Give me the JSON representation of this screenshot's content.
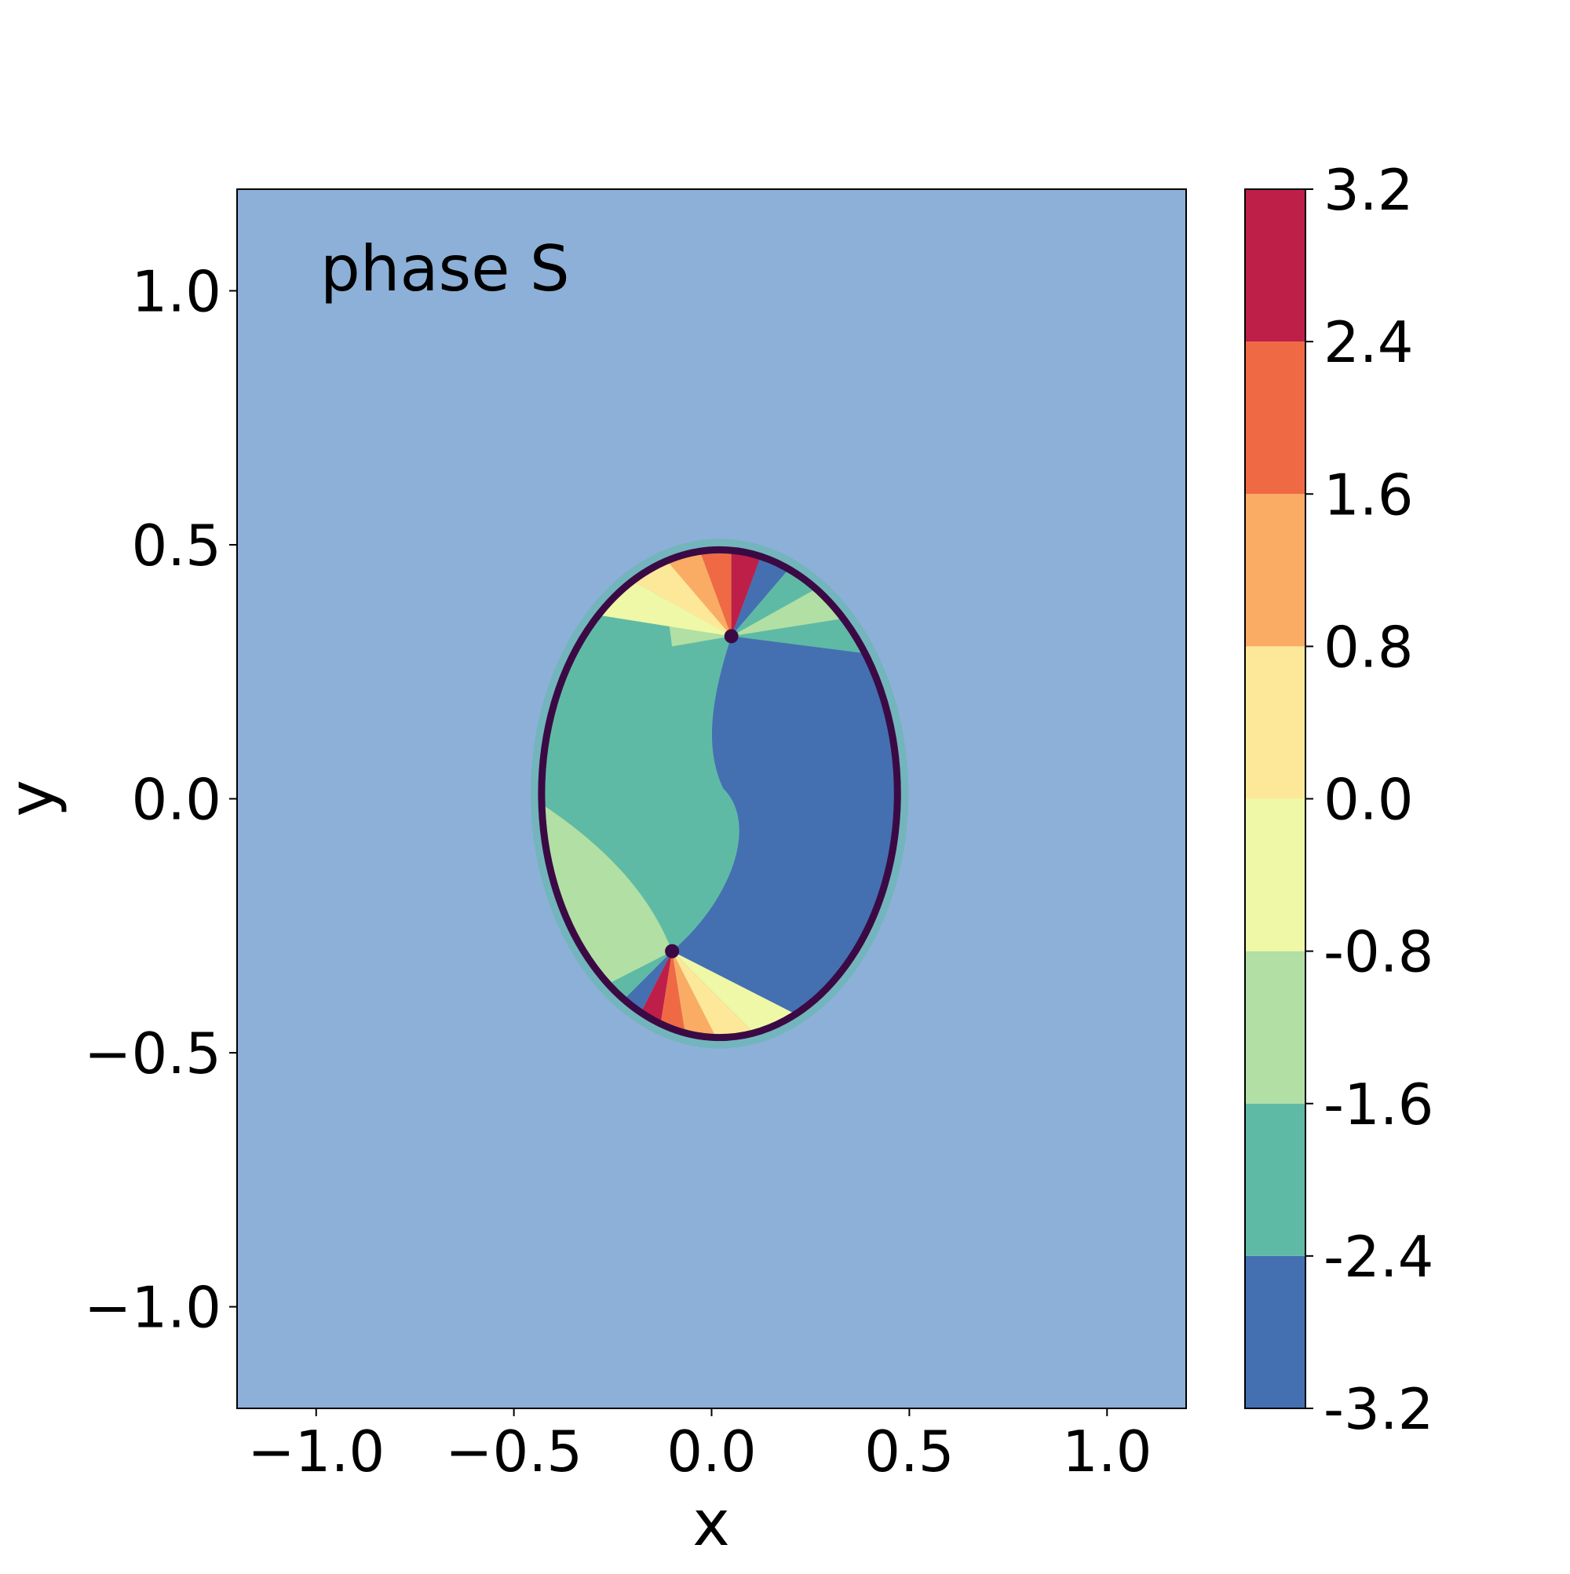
{
  "chart_data": {
    "type": "heatmap",
    "title": "",
    "annotation": "phase S",
    "xlabel": "x",
    "ylabel": "y",
    "xlim": [
      -1.2,
      1.2
    ],
    "ylim": [
      -1.2,
      1.2
    ],
    "x_ticks": [
      -1.0,
      -0.5,
      0.0,
      0.5,
      1.0
    ],
    "x_tick_labels": [
      "−1.0",
      "−0.5",
      "0.0",
      "0.5",
      "1.0"
    ],
    "y_ticks": [
      1.0,
      0.5,
      0.0,
      -0.5,
      -1.0
    ],
    "y_tick_labels": [
      "1.0",
      "0.5",
      "0.0",
      "−0.5",
      "−1.0"
    ],
    "colorbar": {
      "levels": [
        -3.2,
        -2.4,
        -1.6,
        -0.8,
        0.0,
        0.8,
        1.6,
        2.4,
        3.2
      ],
      "labels": [
        "-3.2",
        "-2.4",
        "-1.6",
        "-0.8",
        "0.0",
        "0.8",
        "1.6",
        "2.4",
        "3.2"
      ],
      "colors": [
        "#4470b1",
        "#5fbaa5",
        "#b2dfa3",
        "#eff8a7",
        "#fde89a",
        "#fbac64",
        "#ef6a44",
        "#be1f48"
      ]
    },
    "droplet": {
      "center": [
        0.02,
        0.01
      ],
      "semi_axes": [
        0.45,
        0.48
      ],
      "contour_color": "#3b0a45",
      "vortex_points": [
        [
          0.05,
          0.32
        ],
        [
          -0.1,
          -0.3
        ]
      ]
    }
  }
}
